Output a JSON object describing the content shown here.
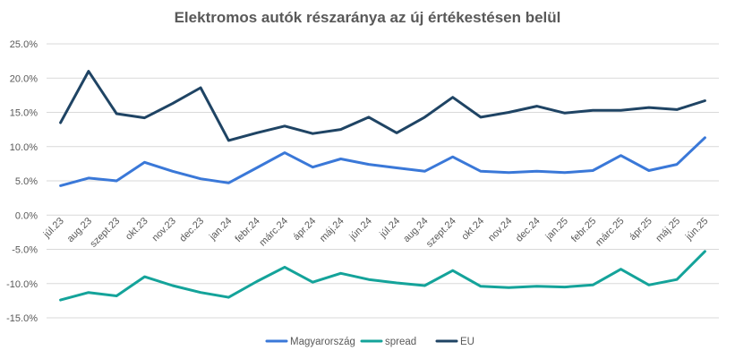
{
  "chart_data": {
    "type": "line",
    "title": "Elektromos autók részaránya az új értékestésen belül",
    "xlabel": "",
    "ylabel": "",
    "ylim": [
      -15,
      25
    ],
    "yticks": [
      "25.0%",
      "20.0%",
      "15.0%",
      "10.0%",
      "5.0%",
      "0.0%",
      "-5.0%",
      "-10.0%",
      "-15.0%"
    ],
    "grid": true,
    "legend_position": "bottom",
    "categories": [
      "júl.23",
      "aug.23",
      "szept.23",
      "okt.23",
      "nov.23",
      "dec.23",
      "jan.24",
      "febr.24",
      "márc.24",
      "ápr.24",
      "máj.24",
      "jún.24",
      "júl.24",
      "aug.24",
      "szept.24",
      "okt.24",
      "nov.24",
      "dec.24",
      "jan.25",
      "febr.25",
      "márc.25",
      "ápr.25",
      "máj.25",
      "jún.25"
    ],
    "series": [
      {
        "name": "Magyarország",
        "color": "#3A78D8",
        "values": [
          4.3,
          5.4,
          5.0,
          7.7,
          6.4,
          5.3,
          4.7,
          6.9,
          9.1,
          7.0,
          8.2,
          7.4,
          6.9,
          6.4,
          8.5,
          6.4,
          6.2,
          6.4,
          6.2,
          6.5,
          8.7,
          6.5,
          7.4,
          11.3
        ]
      },
      {
        "name": "spread",
        "color": "#14A39A",
        "values": [
          -12.4,
          -11.3,
          -11.8,
          -9.0,
          -10.3,
          -11.3,
          -12.0,
          -9.7,
          -7.6,
          -9.8,
          -8.5,
          -9.4,
          -9.9,
          -10.3,
          -8.1,
          -10.4,
          -10.6,
          -10.4,
          -10.5,
          -10.2,
          -7.9,
          -10.2,
          -9.4,
          -5.3
        ]
      },
      {
        "name": "EU",
        "color": "#1F4464",
        "values": [
          13.5,
          21.0,
          14.8,
          14.2,
          16.3,
          18.6,
          10.9,
          12.0,
          13.0,
          11.9,
          12.5,
          14.3,
          12.0,
          14.3,
          17.2,
          14.3,
          15.0,
          15.9,
          14.9,
          15.3,
          15.3,
          15.7,
          15.4,
          16.7
        ]
      }
    ]
  }
}
